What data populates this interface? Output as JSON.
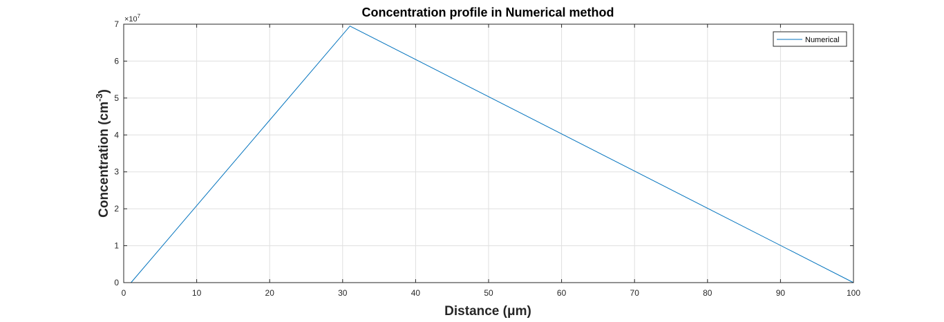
{
  "chart_data": {
    "type": "line",
    "title": "Concentration profile in Numerical method",
    "xlabel": "Distance (μm)",
    "ylabel": {
      "base": "Concentration (cm",
      "superscript": "-3",
      "tail": ")"
    },
    "y_exponent": {
      "base": "×10",
      "power": "7"
    },
    "xlim": [
      0,
      100
    ],
    "ylim": [
      0,
      7
    ],
    "x_ticks": [
      0,
      10,
      20,
      30,
      40,
      50,
      60,
      70,
      80,
      90,
      100
    ],
    "y_ticks": [
      0,
      1,
      2,
      3,
      4,
      5,
      6,
      7
    ],
    "grid": true,
    "legend_position": "top-right",
    "series": [
      {
        "name": "Numerical",
        "color": "#0072bd",
        "x": [
          1,
          31,
          100
        ],
        "y": [
          0,
          6.95,
          0
        ]
      }
    ]
  }
}
